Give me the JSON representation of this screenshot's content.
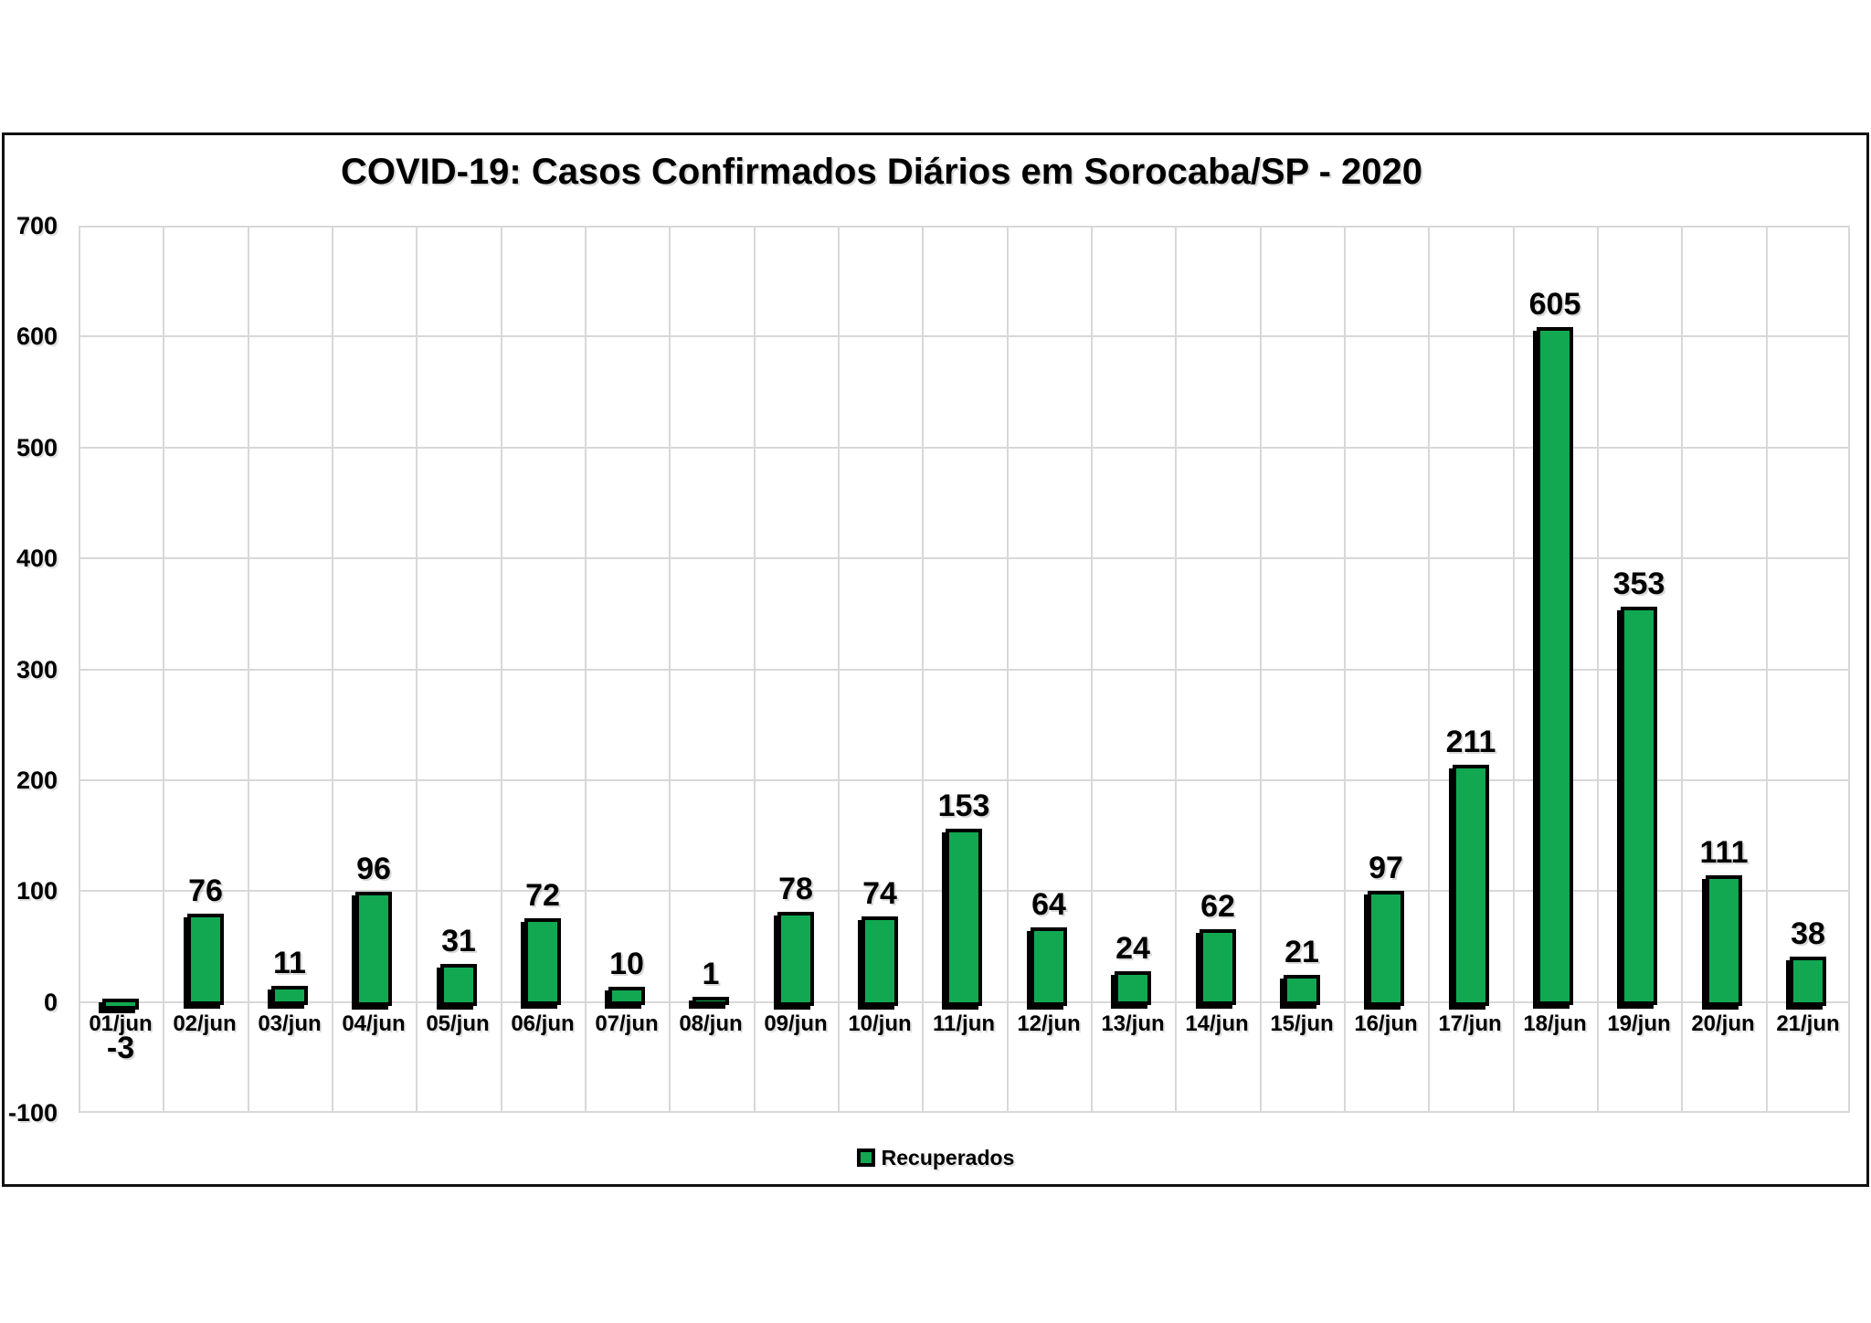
{
  "chart": {
    "title": "COVID-19: Casos Confirmados Diários em Sorocaba/SP - 2020",
    "legend": {
      "label": "Recuperados"
    },
    "colors": {
      "bar_fill": "#11a851",
      "bar_border": "#000000",
      "gridline": "#d8d8d8",
      "frame_border": "#111111",
      "background": "#ffffff",
      "text": "#000000"
    }
  },
  "chart_data": {
    "type": "bar",
    "title": "COVID-19: Casos Confirmados Diários em Sorocaba/SP - 2020",
    "categories": [
      "01/jun",
      "02/jun",
      "03/jun",
      "04/jun",
      "05/jun",
      "06/jun",
      "07/jun",
      "08/jun",
      "09/jun",
      "10/jun",
      "11/jun",
      "12/jun",
      "13/jun",
      "14/jun",
      "15/jun",
      "16/jun",
      "17/jun",
      "18/jun",
      "19/jun",
      "20/jun",
      "21/jun"
    ],
    "series": [
      {
        "name": "Recuperados",
        "values": [
          -3,
          76,
          11,
          96,
          31,
          72,
          10,
          1,
          78,
          74,
          153,
          64,
          24,
          62,
          21,
          97,
          211,
          605,
          353,
          111,
          38
        ]
      }
    ],
    "data_labels": [
      -3,
      76,
      11,
      96,
      31,
      72,
      10,
      1,
      78,
      74,
      153,
      64,
      24,
      62,
      21,
      97,
      211,
      605,
      353,
      111,
      38
    ],
    "xlabel": "",
    "ylabel": "",
    "ylim": [
      -100,
      700
    ],
    "yticks": [
      700,
      600,
      500,
      400,
      300,
      200,
      100,
      0,
      -100
    ],
    "grid": true,
    "legend_position": "bottom"
  }
}
